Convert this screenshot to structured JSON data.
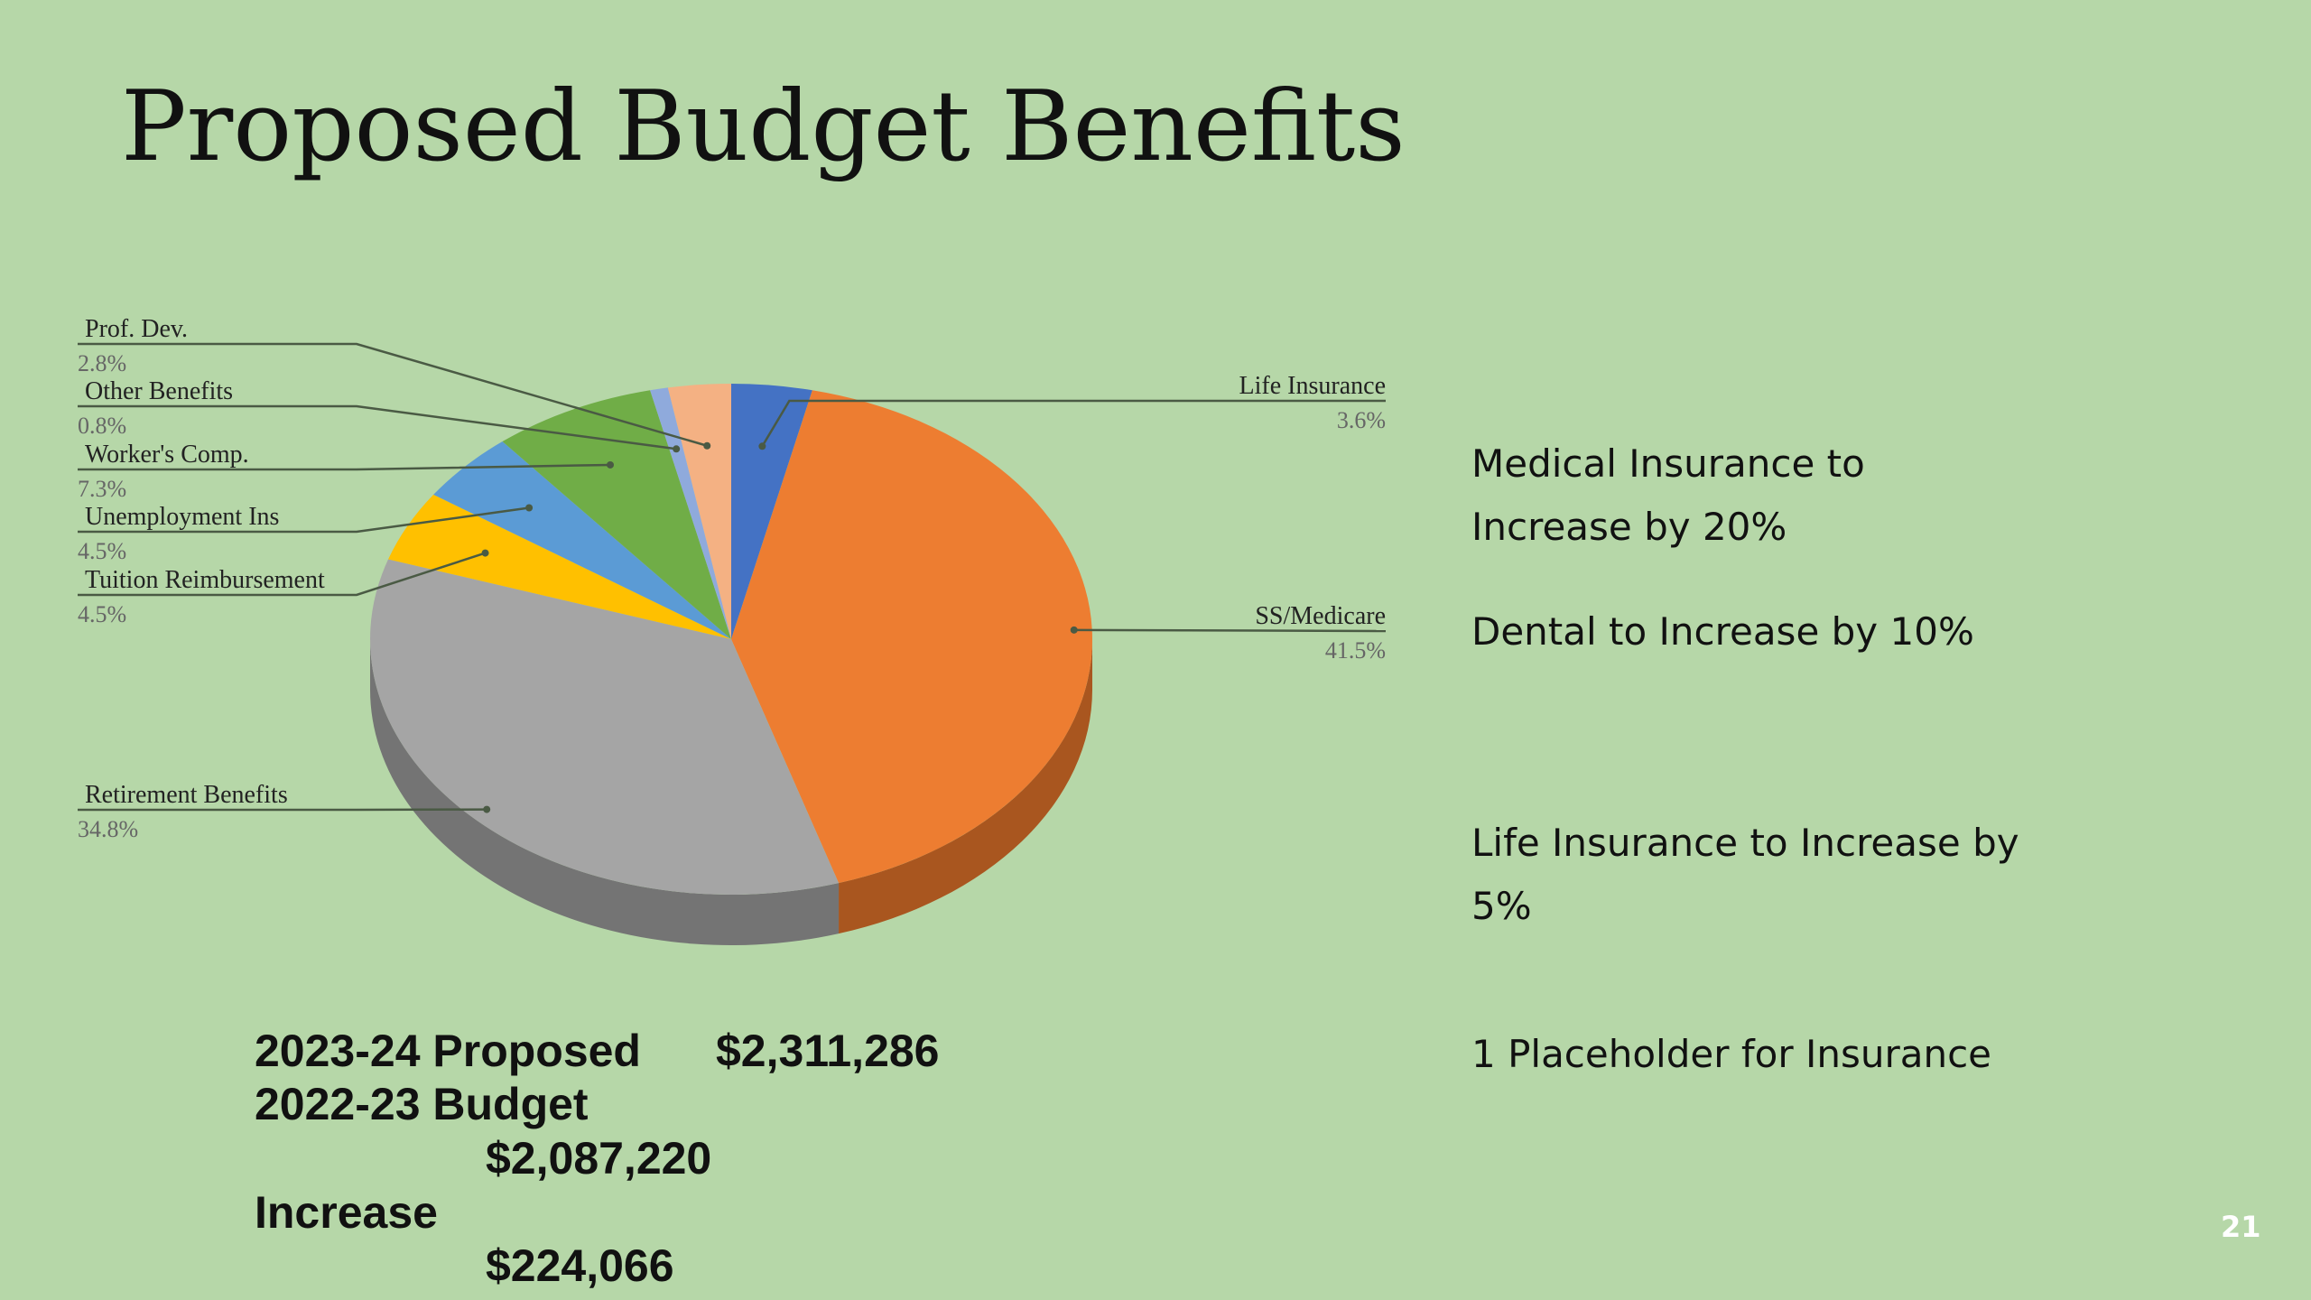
{
  "colors": {
    "background": "#b6d7a8"
  },
  "slide": {
    "title": "Proposed Budget Benefits",
    "page_number": "21"
  },
  "notes": [
    "Medical Insurance to Increase by 20%",
    "Dental to Increase by 10%",
    "Life Insurance to Increase by 5%",
    "1 Placeholder for Insurance"
  ],
  "budget": {
    "proposed_label": "2023-24 Proposed",
    "proposed_value": "$2,311,286",
    "prior_label": "2022-23 Budget",
    "prior_value": "$2,087,220",
    "increase_label": "Increase",
    "increase_value": "$224,066"
  },
  "chart_data": {
    "type": "pie",
    "style": "3d",
    "title": "",
    "slices": [
      {
        "label": "Life Insurance",
        "value": 3.6,
        "display": "3.6%",
        "color": "#4472c4",
        "side_color": "#2f5496"
      },
      {
        "label": "SS/Medicare",
        "value": 41.5,
        "display": "41.5%",
        "color": "#ed7d31",
        "side_color": "#a9561f"
      },
      {
        "label": "Retirement Benefits",
        "value": 34.8,
        "display": "34.8%",
        "color": "#a5a5a5",
        "side_color": "#747474"
      },
      {
        "label": "Tuition Reimbursement",
        "value": 4.5,
        "display": "4.5%",
        "color": "#ffc000",
        "side_color": "#b88a00"
      },
      {
        "label": "Unemployment Ins",
        "value": 4.5,
        "display": "4.5%",
        "color": "#5b9bd5",
        "side_color": "#3d6f9c"
      },
      {
        "label": "Worker's Comp.",
        "value": 7.3,
        "display": "7.3%",
        "color": "#70ad47",
        "side_color": "#4e7a31"
      },
      {
        "label": "Other Benefits",
        "value": 0.8,
        "display": "0.8%",
        "color": "#8faadc",
        "side_color": "#62789f"
      },
      {
        "label": "Prof. Dev.",
        "value": 2.8,
        "display": "2.8%",
        "color": "#f4b183",
        "side_color": "#b0805e"
      }
    ]
  }
}
